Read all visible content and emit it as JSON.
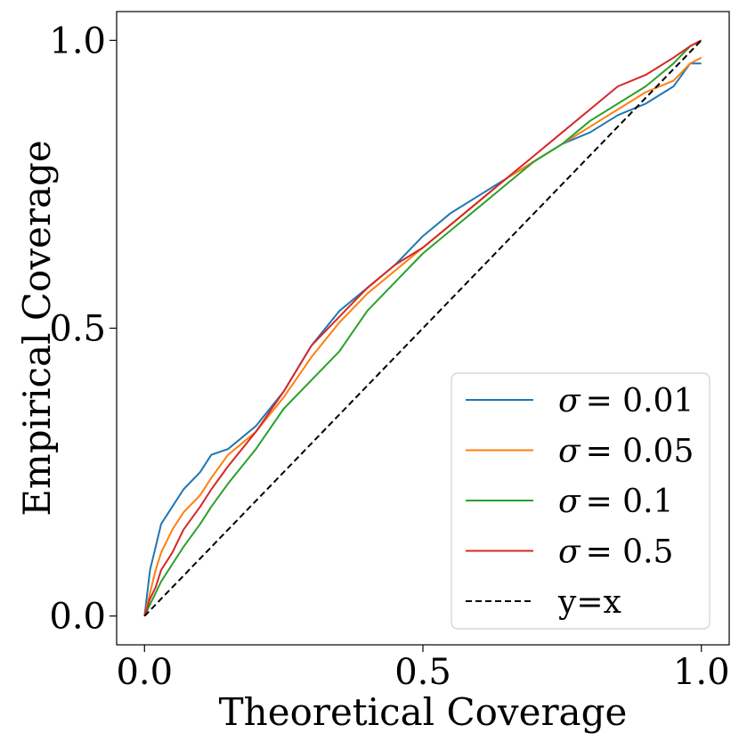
{
  "chart_data": {
    "type": "line",
    "title": "",
    "xlabel": "Theoretical Coverage",
    "ylabel": "Empirical Coverage",
    "xlim": [
      -0.05,
      1.05
    ],
    "ylim": [
      -0.05,
      1.05
    ],
    "xticks": [
      0.0,
      0.5,
      1.0
    ],
    "yticks": [
      0.0,
      0.5,
      1.0
    ],
    "xtick_labels": [
      "0.0",
      "0.5",
      "1.0"
    ],
    "ytick_labels": [
      "0.0",
      "0.5",
      "1.0"
    ],
    "grid": false,
    "legend_position": "lower-right",
    "series": [
      {
        "name": "σ = 0.01",
        "legend_symbol": "σ",
        "legend_value": "= 0.01",
        "color": "#1f77b4",
        "style": "solid",
        "x": [
          0.0,
          0.01,
          0.02,
          0.03,
          0.05,
          0.07,
          0.1,
          0.12,
          0.15,
          0.2,
          0.25,
          0.3,
          0.35,
          0.4,
          0.45,
          0.5,
          0.55,
          0.6,
          0.65,
          0.7,
          0.75,
          0.8,
          0.85,
          0.9,
          0.95,
          0.98,
          1.0
        ],
        "y": [
          0.0,
          0.08,
          0.12,
          0.16,
          0.19,
          0.22,
          0.25,
          0.28,
          0.29,
          0.33,
          0.39,
          0.47,
          0.53,
          0.57,
          0.61,
          0.66,
          0.7,
          0.73,
          0.76,
          0.79,
          0.82,
          0.84,
          0.87,
          0.89,
          0.92,
          0.96,
          0.96
        ]
      },
      {
        "name": "σ = 0.05",
        "legend_symbol": "σ",
        "legend_value": "= 0.05",
        "color": "#ff7f0e",
        "style": "solid",
        "x": [
          0.0,
          0.01,
          0.02,
          0.03,
          0.05,
          0.07,
          0.1,
          0.12,
          0.15,
          0.2,
          0.25,
          0.3,
          0.35,
          0.4,
          0.45,
          0.5,
          0.55,
          0.6,
          0.65,
          0.7,
          0.75,
          0.8,
          0.85,
          0.9,
          0.95,
          0.98,
          1.0
        ],
        "y": [
          0.0,
          0.04,
          0.08,
          0.11,
          0.15,
          0.18,
          0.21,
          0.24,
          0.28,
          0.32,
          0.38,
          0.45,
          0.51,
          0.56,
          0.6,
          0.64,
          0.68,
          0.72,
          0.76,
          0.79,
          0.82,
          0.85,
          0.88,
          0.91,
          0.93,
          0.96,
          0.97
        ]
      },
      {
        "name": "σ = 0.1",
        "legend_symbol": "σ",
        "legend_value": "= 0.1",
        "color": "#2ca02c",
        "style": "solid",
        "x": [
          0.0,
          0.01,
          0.02,
          0.03,
          0.05,
          0.07,
          0.1,
          0.12,
          0.15,
          0.2,
          0.25,
          0.3,
          0.35,
          0.4,
          0.45,
          0.5,
          0.55,
          0.6,
          0.65,
          0.7,
          0.75,
          0.8,
          0.85,
          0.9,
          0.95,
          0.98,
          1.0
        ],
        "y": [
          0.0,
          0.02,
          0.04,
          0.06,
          0.09,
          0.12,
          0.16,
          0.19,
          0.23,
          0.29,
          0.36,
          0.41,
          0.46,
          0.53,
          0.58,
          0.63,
          0.67,
          0.71,
          0.75,
          0.79,
          0.82,
          0.86,
          0.89,
          0.92,
          0.96,
          0.99,
          1.0
        ]
      },
      {
        "name": "σ = 0.5",
        "legend_symbol": "σ",
        "legend_value": "= 0.5",
        "color": "#d62728",
        "style": "solid",
        "x": [
          0.0,
          0.01,
          0.02,
          0.03,
          0.05,
          0.07,
          0.1,
          0.12,
          0.15,
          0.2,
          0.25,
          0.3,
          0.35,
          0.4,
          0.45,
          0.5,
          0.55,
          0.6,
          0.65,
          0.7,
          0.75,
          0.8,
          0.85,
          0.9,
          0.95,
          0.98,
          1.0
        ],
        "y": [
          0.0,
          0.03,
          0.05,
          0.08,
          0.11,
          0.15,
          0.19,
          0.22,
          0.26,
          0.32,
          0.39,
          0.47,
          0.52,
          0.57,
          0.61,
          0.64,
          0.68,
          0.72,
          0.76,
          0.8,
          0.84,
          0.88,
          0.92,
          0.94,
          0.97,
          0.99,
          1.0
        ]
      },
      {
        "name": "y=x",
        "legend_symbol": "",
        "legend_value": "y=x",
        "color": "#000000",
        "style": "dashed",
        "x": [
          0.0,
          1.0
        ],
        "y": [
          0.0,
          1.0
        ]
      }
    ]
  }
}
